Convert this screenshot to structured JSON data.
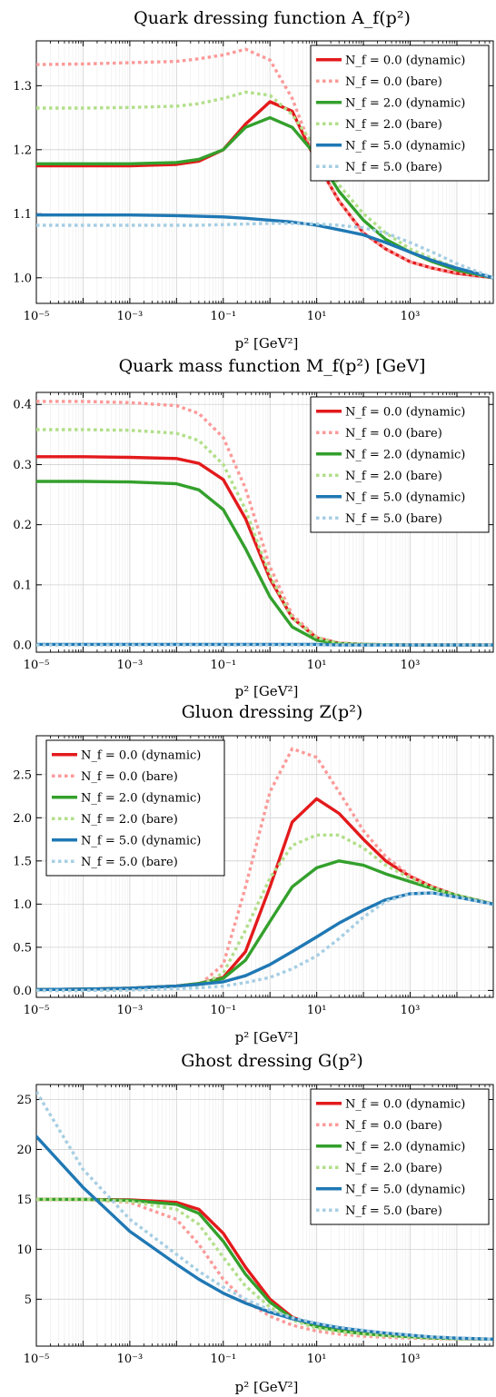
{
  "colors": {
    "nf0_dynamic": "#e31a1c",
    "nf0_bare": "#fb9a99",
    "nf2_dynamic": "#33a02c",
    "nf2_bare": "#b2df8a",
    "nf5_dynamic": "#1f78b4",
    "nf5_bare": "#a6cee3"
  },
  "chart_data": [
    {
      "type": "line",
      "title": "Quark dressing function A_f(p²)",
      "xlabel": "p² [GeV²]",
      "ylabel": "",
      "xscale": "log",
      "xlim": [
        1e-05,
        60000
      ],
      "ylim": [
        0.96,
        1.37
      ],
      "xticks": [
        "10⁻⁵",
        "10⁻³",
        "10⁻¹",
        "10¹",
        "10³"
      ],
      "yticks": [
        "1.0",
        "1.1",
        "1.2",
        "1.3"
      ],
      "ytick_values": [
        1.0,
        1.1,
        1.2,
        1.3
      ],
      "grid": true,
      "legend_position": "top-right",
      "x": [
        1e-05,
        0.0001,
        0.001,
        0.01,
        0.03,
        0.1,
        0.3,
        1,
        3,
        10,
        30,
        100,
        300,
        1000,
        3000,
        10000,
        60000
      ],
      "series": [
        {
          "name": "N_f = 0.0 (dynamic)",
          "color_key": "nf0_dynamic",
          "style": "solid",
          "values": [
            1.175,
            1.175,
            1.175,
            1.177,
            1.182,
            1.2,
            1.24,
            1.275,
            1.26,
            1.18,
            1.12,
            1.07,
            1.045,
            1.025,
            1.015,
            1.007,
            1.0
          ]
        },
        {
          "name": "N_f = 0.0 (bare)",
          "color_key": "nf0_bare",
          "style": "dotted",
          "values": [
            1.333,
            1.334,
            1.336,
            1.338,
            1.342,
            1.348,
            1.357,
            1.34,
            1.28,
            1.18,
            1.12,
            1.07,
            1.045,
            1.025,
            1.015,
            1.008,
            1.0
          ]
        },
        {
          "name": "N_f = 2.0 (dynamic)",
          "color_key": "nf2_dynamic",
          "style": "solid",
          "values": [
            1.178,
            1.178,
            1.178,
            1.18,
            1.185,
            1.2,
            1.235,
            1.25,
            1.235,
            1.19,
            1.135,
            1.09,
            1.06,
            1.04,
            1.025,
            1.012,
            1.0
          ]
        },
        {
          "name": "N_f = 2.0 (bare)",
          "color_key": "nf2_bare",
          "style": "dotted",
          "values": [
            1.265,
            1.265,
            1.266,
            1.268,
            1.272,
            1.28,
            1.29,
            1.285,
            1.255,
            1.2,
            1.145,
            1.1,
            1.07,
            1.045,
            1.03,
            1.015,
            1.0
          ]
        },
        {
          "name": "N_f = 5.0 (dynamic)",
          "color_key": "nf5_dynamic",
          "style": "solid",
          "values": [
            1.098,
            1.098,
            1.098,
            1.097,
            1.096,
            1.095,
            1.093,
            1.09,
            1.087,
            1.082,
            1.075,
            1.067,
            1.055,
            1.04,
            1.027,
            1.015,
            1.0
          ]
        },
        {
          "name": "N_f = 5.0 (bare)",
          "color_key": "nf5_bare",
          "style": "dotted",
          "values": [
            1.082,
            1.082,
            1.082,
            1.082,
            1.082,
            1.083,
            1.084,
            1.085,
            1.085,
            1.084,
            1.082,
            1.078,
            1.07,
            1.055,
            1.04,
            1.022,
            1.0
          ]
        }
      ]
    },
    {
      "type": "line",
      "title": "Quark mass function M_f(p²) [GeV]",
      "xlabel": "p² [GeV²]",
      "ylabel": "",
      "xscale": "log",
      "xlim": [
        1e-05,
        60000
      ],
      "ylim": [
        -0.012,
        0.42
      ],
      "xticks": [
        "10⁻⁵",
        "10⁻³",
        "10⁻¹",
        "10¹",
        "10³"
      ],
      "yticks": [
        "0.0",
        "0.1",
        "0.2",
        "0.3",
        "0.4"
      ],
      "ytick_values": [
        0.0,
        0.1,
        0.2,
        0.3,
        0.4
      ],
      "grid": true,
      "legend_position": "top-right",
      "x": [
        1e-05,
        0.0001,
        0.001,
        0.01,
        0.03,
        0.1,
        0.3,
        1,
        3,
        10,
        30,
        100,
        1000,
        60000
      ],
      "series": [
        {
          "name": "N_f = 0.0 (dynamic)",
          "color_key": "nf0_dynamic",
          "style": "solid",
          "values": [
            0.313,
            0.313,
            0.312,
            0.31,
            0.302,
            0.275,
            0.21,
            0.11,
            0.045,
            0.012,
            0.003,
            0.001,
            0.0,
            0.0
          ]
        },
        {
          "name": "N_f = 0.0 (bare)",
          "color_key": "nf0_bare",
          "style": "dotted",
          "values": [
            0.405,
            0.405,
            0.403,
            0.398,
            0.385,
            0.345,
            0.26,
            0.13,
            0.05,
            0.013,
            0.003,
            0.001,
            0.0,
            0.0
          ]
        },
        {
          "name": "N_f = 2.0 (dynamic)",
          "color_key": "nf2_dynamic",
          "style": "solid",
          "values": [
            0.272,
            0.272,
            0.271,
            0.268,
            0.258,
            0.225,
            0.16,
            0.08,
            0.03,
            0.008,
            0.002,
            0.001,
            0.0,
            0.0
          ]
        },
        {
          "name": "N_f = 2.0 (bare)",
          "color_key": "nf2_bare",
          "style": "dotted",
          "values": [
            0.358,
            0.358,
            0.357,
            0.352,
            0.34,
            0.3,
            0.225,
            0.115,
            0.045,
            0.012,
            0.003,
            0.001,
            0.0,
            0.0
          ]
        },
        {
          "name": "N_f = 5.0 (dynamic)",
          "color_key": "nf5_dynamic",
          "style": "solid",
          "values": [
            0.001,
            0.001,
            0.001,
            0.001,
            0.001,
            0.001,
            0.001,
            0.001,
            0.001,
            0.001,
            0.0,
            0.0,
            0.0,
            0.0
          ]
        },
        {
          "name": "N_f = 5.0 (bare)",
          "color_key": "nf5_bare",
          "style": "dotted",
          "values": [
            0.0,
            0.0,
            0.0,
            0.0,
            0.0,
            0.0,
            0.0,
            0.0,
            0.0,
            0.0,
            0.0,
            0.0,
            0.0,
            0.0
          ]
        }
      ]
    },
    {
      "type": "line",
      "title": "Gluon dressing Z(p²)",
      "xlabel": "p² [GeV²]",
      "ylabel": "",
      "xscale": "log",
      "xlim": [
        1e-05,
        60000
      ],
      "ylim": [
        -0.08,
        2.95
      ],
      "xticks": [
        "10⁻⁵",
        "10⁻³",
        "10⁻¹",
        "10¹",
        "10³"
      ],
      "yticks": [
        "0.0",
        "0.5",
        "1.0",
        "1.5",
        "2.0",
        "2.5"
      ],
      "ytick_values": [
        0.0,
        0.5,
        1.0,
        1.5,
        2.0,
        2.5
      ],
      "grid": true,
      "legend_position": "top-left",
      "x": [
        1e-05,
        0.0001,
        0.001,
        0.01,
        0.03,
        0.1,
        0.3,
        1,
        3,
        10,
        30,
        100,
        300,
        1000,
        3000,
        10000,
        60000
      ],
      "series": [
        {
          "name": "N_f = 0.0 (dynamic)",
          "color_key": "nf0_dynamic",
          "style": "solid",
          "values": [
            0.01,
            0.015,
            0.025,
            0.05,
            0.08,
            0.15,
            0.45,
            1.2,
            1.95,
            2.22,
            2.05,
            1.75,
            1.5,
            1.32,
            1.2,
            1.1,
            1.0
          ]
        },
        {
          "name": "N_f = 0.0 (bare)",
          "color_key": "nf0_bare",
          "style": "dotted",
          "values": [
            0.0,
            0.0,
            0.005,
            0.02,
            0.06,
            0.3,
            1.2,
            2.3,
            2.8,
            2.7,
            2.3,
            1.85,
            1.55,
            1.33,
            1.2,
            1.1,
            1.0
          ]
        },
        {
          "name": "N_f = 2.0 (dynamic)",
          "color_key": "nf2_dynamic",
          "style": "solid",
          "values": [
            0.01,
            0.015,
            0.025,
            0.05,
            0.08,
            0.14,
            0.35,
            0.8,
            1.2,
            1.42,
            1.5,
            1.45,
            1.35,
            1.26,
            1.18,
            1.1,
            1.0
          ]
        },
        {
          "name": "N_f = 2.0 (bare)",
          "color_key": "nf2_bare",
          "style": "dotted",
          "values": [
            0.0,
            0.0,
            0.005,
            0.02,
            0.05,
            0.2,
            0.7,
            1.3,
            1.68,
            1.8,
            1.8,
            1.65,
            1.45,
            1.3,
            1.19,
            1.1,
            1.0
          ]
        },
        {
          "name": "N_f = 5.0 (dynamic)",
          "color_key": "nf5_dynamic",
          "style": "solid",
          "values": [
            0.01,
            0.015,
            0.025,
            0.05,
            0.07,
            0.1,
            0.17,
            0.3,
            0.45,
            0.62,
            0.78,
            0.93,
            1.05,
            1.12,
            1.13,
            1.08,
            1.0
          ]
        },
        {
          "name": "N_f = 5.0 (bare)",
          "color_key": "nf5_bare",
          "style": "dotted",
          "values": [
            0.0,
            0.0,
            0.005,
            0.02,
            0.03,
            0.05,
            0.09,
            0.15,
            0.25,
            0.4,
            0.6,
            0.85,
            1.03,
            1.12,
            1.13,
            1.08,
            1.0
          ]
        }
      ]
    },
    {
      "type": "line",
      "title": "Ghost dressing G(p²)",
      "xlabel": "p² [GeV²]",
      "ylabel": "",
      "xscale": "log",
      "xlim": [
        1e-05,
        60000
      ],
      "ylim": [
        0.3,
        26.5
      ],
      "xticks": [
        "10⁻⁵",
        "10⁻³",
        "10⁻¹",
        "10¹",
        "10³"
      ],
      "yticks": [
        "5",
        "10",
        "15",
        "20",
        "25"
      ],
      "ytick_values": [
        5,
        10,
        15,
        20,
        25
      ],
      "grid": true,
      "legend_position": "top-right",
      "x": [
        1e-05,
        0.0001,
        0.001,
        0.01,
        0.03,
        0.1,
        0.3,
        1,
        3,
        10,
        30,
        100,
        300,
        1000,
        3000,
        10000,
        60000
      ],
      "series": [
        {
          "name": "N_f = 0.0 (dynamic)",
          "color_key": "nf0_dynamic",
          "style": "solid",
          "values": [
            15.0,
            15.0,
            14.95,
            14.7,
            14.0,
            11.6,
            8.2,
            5.0,
            3.2,
            2.3,
            1.9,
            1.6,
            1.4,
            1.25,
            1.12,
            1.05,
            1.0
          ]
        },
        {
          "name": "N_f = 0.0 (bare)",
          "color_key": "nf0_bare",
          "style": "dotted",
          "values": [
            15.0,
            15.0,
            14.7,
            13.0,
            10.5,
            7.0,
            4.8,
            3.3,
            2.4,
            1.8,
            1.5,
            1.3,
            1.18,
            1.1,
            1.05,
            1.02,
            1.0
          ]
        },
        {
          "name": "N_f = 2.0 (dynamic)",
          "color_key": "nf2_dynamic",
          "style": "solid",
          "values": [
            15.0,
            15.0,
            14.9,
            14.5,
            13.6,
            10.8,
            7.5,
            4.7,
            3.1,
            2.25,
            1.85,
            1.55,
            1.38,
            1.24,
            1.12,
            1.05,
            1.0
          ]
        },
        {
          "name": "N_f = 2.0 (bare)",
          "color_key": "nf2_bare",
          "style": "dotted",
          "values": [
            15.0,
            15.0,
            14.8,
            14.0,
            12.5,
            9.2,
            6.3,
            4.2,
            2.9,
            2.1,
            1.75,
            1.5,
            1.33,
            1.2,
            1.1,
            1.04,
            1.0
          ]
        },
        {
          "name": "N_f = 5.0 (dynamic)",
          "color_key": "nf5_dynamic",
          "style": "solid",
          "values": [
            21.3,
            16.2,
            11.8,
            8.5,
            7.0,
            5.6,
            4.6,
            3.7,
            3.05,
            2.55,
            2.15,
            1.85,
            1.6,
            1.4,
            1.22,
            1.1,
            1.0
          ]
        },
        {
          "name": "N_f = 5.0 (bare)",
          "color_key": "nf5_bare",
          "style": "dotted",
          "values": [
            25.8,
            18.0,
            13.0,
            9.5,
            7.8,
            6.2,
            5.0,
            3.9,
            3.15,
            2.6,
            2.2,
            1.88,
            1.62,
            1.4,
            1.22,
            1.1,
            1.0
          ]
        }
      ]
    }
  ]
}
